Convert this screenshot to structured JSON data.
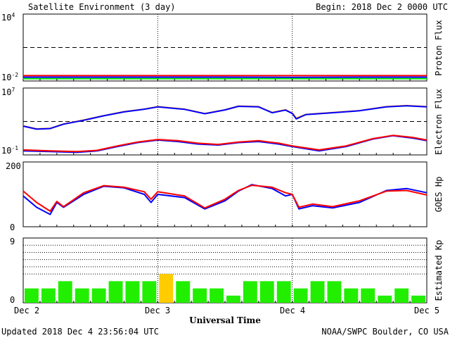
{
  "header": {
    "title": "Satellite Environment (3 day)",
    "begin": "Begin:  2018 Dec 2 0000 UTC"
  },
  "footer": {
    "updated": "Updated 2018 Dec  4 23:56:04 UTC",
    "credit": "NOAA/SWPC Boulder, CO USA",
    "xlabel": "Universal Time"
  },
  "chart_data": [
    {
      "id": "proton",
      "type": "line",
      "ylabel": "Proton Flux",
      "yscale": "log",
      "ytick_labels": [
        "10^4",
        "10^-2"
      ],
      "ylim": [
        0.01,
        10000
      ],
      "threshold": 10,
      "x_range_days": [
        0,
        3
      ],
      "series": [
        {
          "color": "#ff0000",
          "x": [
            0,
            0.5,
            1,
            1.5,
            2,
            2.5,
            3
          ],
          "y": [
            0.03,
            0.03,
            0.03,
            0.03,
            0.03,
            0.03,
            0.03
          ]
        },
        {
          "color": "#0000ff",
          "x": [
            0,
            0.5,
            1,
            1.5,
            2,
            2.5,
            3
          ],
          "y": [
            0.022,
            0.022,
            0.022,
            0.022,
            0.021,
            0.022,
            0.022
          ]
        },
        {
          "color": "#00ee00",
          "x": [
            0,
            0.5,
            1,
            1.5,
            2,
            2.5,
            3
          ],
          "y": [
            0.016,
            0.016,
            0.016,
            0.016,
            0.016,
            0.016,
            0.016
          ]
        }
      ]
    },
    {
      "id": "electron",
      "type": "line",
      "ylabel": "Electron Flux",
      "yscale": "log",
      "ytick_labels": [
        "10^7",
        "10^-1"
      ],
      "ylim": [
        0.1,
        10000000
      ],
      "threshold": 1000,
      "x_range_days": [
        0,
        3
      ],
      "series": [
        {
          "color": "#ff8c00",
          "x": [
            0,
            0.1,
            0.2,
            0.3,
            0.45,
            0.6,
            0.75,
            0.9,
            1,
            1.2,
            1.35,
            1.5,
            1.6,
            1.75,
            1.85,
            1.95,
            2,
            2.03,
            2.1,
            2.3,
            2.5,
            2.7,
            2.85,
            3
          ],
          "y": [
            300,
            130,
            150,
            500,
            1500,
            5000,
            15000,
            30000,
            60000,
            30000,
            9000,
            25000,
            70000,
            60000,
            12000,
            25000,
            10000,
            2500,
            7000,
            12000,
            20000,
            60000,
            80000,
            60000
          ]
        },
        {
          "color": "#0000ff",
          "x": [
            0,
            0.1,
            0.2,
            0.3,
            0.45,
            0.6,
            0.75,
            0.9,
            1,
            1.2,
            1.35,
            1.5,
            1.6,
            1.75,
            1.85,
            1.95,
            2,
            2.03,
            2.1,
            2.3,
            2.5,
            2.7,
            2.85,
            3
          ],
          "y": [
            280,
            120,
            140,
            480,
            1400,
            4800,
            14000,
            29000,
            55000,
            28000,
            8500,
            24000,
            65000,
            55000,
            11000,
            23000,
            9000,
            2000,
            6500,
            11000,
            19000,
            55000,
            75000,
            55000
          ]
        },
        {
          "color": "#0000ff",
          "x": [
            0,
            0.2,
            0.4,
            0.55,
            0.7,
            0.85,
            1,
            1.15,
            1.3,
            1.45,
            1.6,
            1.75,
            1.9,
            2,
            2.2,
            2.4,
            2.6,
            2.75,
            2.9,
            3
          ],
          "y": [
            0.3,
            0.25,
            0.2,
            0.3,
            1,
            3,
            6,
            4,
            2,
            1.5,
            3,
            4,
            2,
            1,
            0.3,
            1,
            8,
            20,
            10,
            5
          ]
        },
        {
          "color": "#ff0000",
          "x": [
            0,
            0.2,
            0.4,
            0.55,
            0.7,
            0.85,
            1,
            1.15,
            1.3,
            1.45,
            1.6,
            1.75,
            1.9,
            2,
            2.2,
            2.4,
            2.6,
            2.75,
            2.9,
            3
          ],
          "y": [
            0.4,
            0.3,
            0.25,
            0.35,
            1.2,
            3.5,
            7,
            5,
            2.5,
            1.8,
            3.5,
            5,
            2.5,
            1.2,
            0.4,
            1.2,
            9,
            22,
            12,
            6
          ]
        }
      ]
    },
    {
      "id": "goes_hp",
      "type": "line",
      "ylabel": "GOES Hp",
      "yscale": "linear",
      "ylim": [
        0,
        200
      ],
      "yticks": [
        0,
        200
      ],
      "x_range_days": [
        0,
        3
      ],
      "series": [
        {
          "color": "#0000ff",
          "x": [
            0,
            0.1,
            0.2,
            0.25,
            0.3,
            0.45,
            0.6,
            0.75,
            0.9,
            0.95,
            1,
            1.2,
            1.35,
            1.5,
            1.6,
            1.7,
            1.85,
            1.95,
            2,
            2.05,
            2.15,
            2.3,
            2.5,
            2.7,
            2.85,
            3
          ],
          "y": [
            95,
            60,
            38,
            75,
            60,
            100,
            125,
            120,
            100,
            75,
            100,
            90,
            55,
            80,
            110,
            130,
            118,
            95,
            100,
            55,
            65,
            58,
            75,
            112,
            118,
            105
          ]
        },
        {
          "color": "#ff0000",
          "x": [
            0,
            0.1,
            0.2,
            0.25,
            0.3,
            0.45,
            0.6,
            0.75,
            0.9,
            0.95,
            1,
            1.2,
            1.35,
            1.5,
            1.6,
            1.7,
            1.85,
            1.95,
            2,
            2.05,
            2.15,
            2.3,
            2.5,
            2.7,
            2.85,
            3
          ],
          "y": [
            110,
            75,
            48,
            78,
            62,
            105,
            127,
            122,
            108,
            85,
            108,
            95,
            58,
            85,
            112,
            128,
            122,
            105,
            100,
            60,
            70,
            62,
            80,
            110,
            112,
            98
          ]
        }
      ]
    },
    {
      "id": "kp",
      "type": "bar",
      "ylabel": "Estimated Kp",
      "yscale": "linear",
      "ylim": [
        0,
        9
      ],
      "yticks": [
        0,
        9
      ],
      "thresholds": [
        4,
        5,
        6,
        7,
        8
      ],
      "colors": {
        "normal": "#22ee00",
        "elevated": "#ffcc00"
      },
      "values": [
        2,
        2,
        3,
        2,
        2,
        3,
        3,
        3,
        4,
        3,
        2,
        2,
        1,
        3,
        3,
        3,
        2,
        3,
        3,
        2,
        2,
        1,
        2,
        1
      ],
      "elevated_index": [
        8
      ]
    }
  ],
  "xaxis": {
    "ticks": [
      "Dec 2",
      "Dec 3",
      "Dec 4",
      "Dec 5"
    ]
  }
}
